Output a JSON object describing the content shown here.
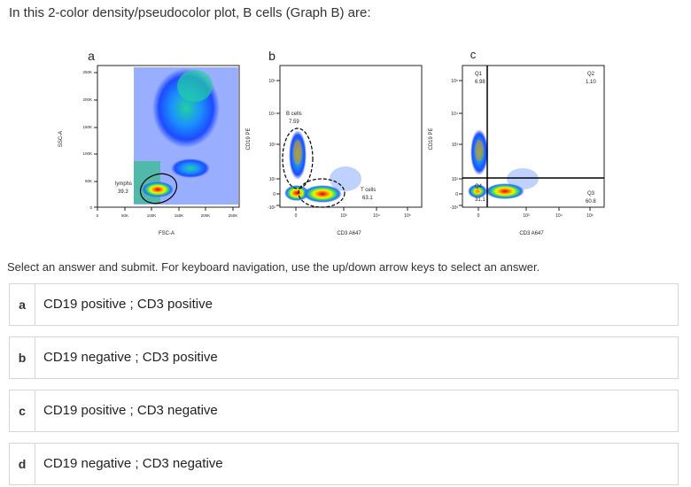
{
  "question": "In this 2-color density/pseudocolor plot, B cells (Graph B) are:",
  "instructions": "Select an answer and submit. For keyboard navigation, use the up/down arrow keys to select an answer.",
  "panels": {
    "a": {
      "letter": "a",
      "xlabel": "FSC-A",
      "ylabel": "SSC-A",
      "xticks": [
        "0",
        "50K",
        "100K",
        "150K",
        "200K",
        "250K"
      ],
      "yticks": [
        "250K",
        "200K",
        "150K",
        "100K",
        "50K",
        "0"
      ],
      "gate_name": "lymphs",
      "gate_value": "39.3"
    },
    "b": {
      "letter": "b",
      "xlabel": "CD3 A647",
      "ylabel": "CD19 PE",
      "xticks": [
        "0",
        "10³",
        "10⁴",
        "10⁵"
      ],
      "yticks": [
        "10⁵",
        "10⁴",
        "10³",
        "10²",
        "0",
        "-10²"
      ],
      "bcell_name": "B cells",
      "bcell_value": "7.59",
      "tcell_name": "T cells",
      "tcell_value": "63.1"
    },
    "c": {
      "letter": "c",
      "xlabel": "CD3 A647",
      "ylabel": "CD19 PE",
      "xticks": [
        "0",
        "10³",
        "10⁴",
        "10⁵"
      ],
      "yticks": [
        "10⁵",
        "10⁴",
        "10³",
        "10²",
        "0",
        "-10²"
      ],
      "q1_name": "Q1",
      "q1_value": "6.98",
      "q2_name": "Q2",
      "q2_value": "1.10",
      "q3_name": "Q3",
      "q3_value": "60.8",
      "q4_name": "Q4",
      "q4_value": "31.1"
    }
  },
  "options": [
    {
      "letter": "a",
      "text": "CD19 positive ; CD3 positive"
    },
    {
      "letter": "b",
      "text": "CD19 negative ; CD3 positive"
    },
    {
      "letter": "c",
      "text": "CD19 positive ; CD3 negative"
    },
    {
      "letter": "d",
      "text": "CD19 negative ; CD3 negative"
    }
  ]
}
